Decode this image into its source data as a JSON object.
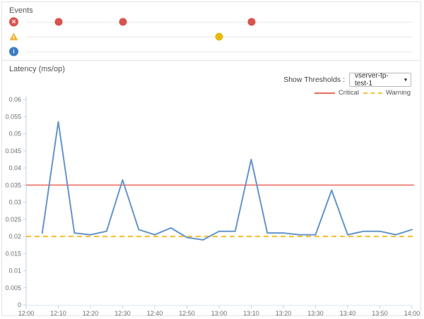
{
  "events_panel": {
    "title": "Events",
    "rows": [
      {
        "id": "error",
        "icon": "error-circle-icon",
        "icon_glyph": "✕",
        "icon_color": "#d9534f",
        "dot_color": "#d9534f",
        "dots": [
          "12:10",
          "12:30",
          "13:10"
        ]
      },
      {
        "id": "warning",
        "icon": "warning-triangle-icon",
        "icon_glyph": "!",
        "icon_color": "#f0b73e",
        "dot_color": "#e9b80e",
        "dots": [
          "13:00"
        ]
      },
      {
        "id": "info",
        "icon": "info-circle-icon",
        "icon_glyph": "i",
        "icon_color": "#3b7ec0",
        "dot_color": "#3b7ec0",
        "dots": []
      }
    ]
  },
  "latency_panel": {
    "title": "Latency (ms/op)",
    "threshold_label": "Show Thresholds :",
    "threshold_selected": "vserver-tp-test-1",
    "dropdown_caret": "▾",
    "legend": [
      {
        "label": "Critical",
        "style": "solid",
        "color": "#ee6a5f"
      },
      {
        "label": "Warning",
        "style": "dashed",
        "color": "#f5c33b"
      }
    ]
  },
  "chart_data": {
    "type": "line",
    "title": "Latency (ms/op)",
    "xlabel": "",
    "ylabel": "Latency (ms/op)",
    "ylim": [
      0,
      0.06
    ],
    "xlim_labels": [
      "12:00",
      "14:00"
    ],
    "x": [
      "12:05",
      "12:10",
      "12:15",
      "12:20",
      "12:25",
      "12:30",
      "12:35",
      "12:40",
      "12:45",
      "12:50",
      "12:55",
      "13:00",
      "13:05",
      "13:10",
      "13:15",
      "13:20",
      "13:25",
      "13:30",
      "13:35",
      "13:40",
      "13:45",
      "13:50",
      "13:55",
      "14:00"
    ],
    "values": [
      0.021,
      0.0535,
      0.021,
      0.0205,
      0.0215,
      0.0365,
      0.022,
      0.0205,
      0.0225,
      0.0197,
      0.019,
      0.0215,
      0.0215,
      0.0425,
      0.021,
      0.021,
      0.0205,
      0.0205,
      0.0335,
      0.0205,
      0.0215,
      0.0215,
      0.0205,
      0.022
    ],
    "series_name": "Latency",
    "thresholds": {
      "critical": 0.035,
      "warning": 0.02
    },
    "yticks": [
      "0.06",
      "0.055",
      "0.05",
      "0.045",
      "0.04",
      "0.035",
      "0.03",
      "0.025",
      "0.02",
      "0.015",
      "0.01",
      "0.005",
      "0"
    ],
    "xticks": [
      "12:00",
      "12:10",
      "12:20",
      "12:30",
      "12:40",
      "12:50",
      "13:00",
      "13:10",
      "13:20",
      "13:30",
      "13:40",
      "13:50",
      "14:00"
    ],
    "grid": false,
    "legend_position": "top-right"
  },
  "colors": {
    "line": "#6495cb",
    "critical": "#ee6a5f",
    "warning": "#f5c33b",
    "axis": "#bfd2ec",
    "axis_minor": "#dde7f4",
    "tick_text": "#707070"
  }
}
